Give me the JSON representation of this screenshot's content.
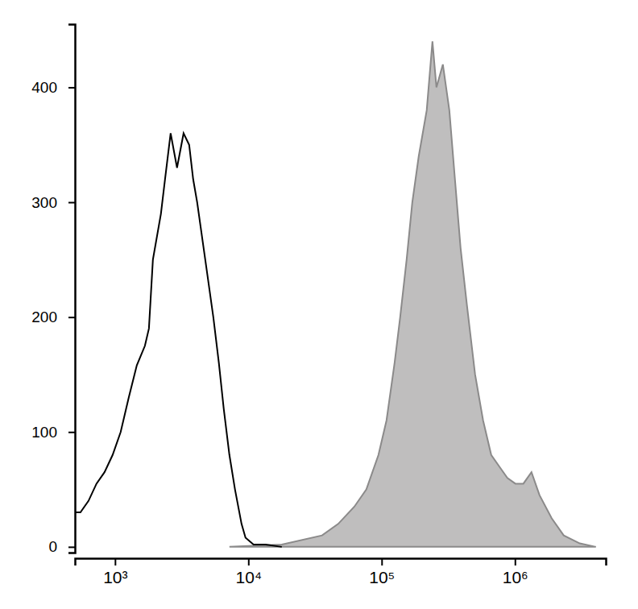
{
  "chart_data": {
    "type": "line",
    "log": "x",
    "xlim": [
      500,
      4800000
    ],
    "ylim": [
      -5,
      455
    ],
    "xticks": [
      {
        "value": 1000,
        "label": "10³"
      },
      {
        "value": 10000,
        "label": "10⁴"
      },
      {
        "value": 100000,
        "label": "10⁵"
      },
      {
        "value": 1000000,
        "label": "10⁶"
      }
    ],
    "yticks": [
      0,
      100,
      200,
      300,
      400
    ],
    "series": [
      {
        "type": "area",
        "color": "#bfbebe",
        "x": [
          7210,
          17820,
          35730,
          47200,
          62370,
          76740,
          94600,
          108700,
          125000,
          137700,
          153900,
          169800,
          189700,
          217800,
          240400,
          257600,
          287800,
          321900,
          354600,
          391000,
          436600,
          502300,
          576800,
          663700,
          762100,
          877000,
          1007000,
          1156000,
          1330000,
          1528000,
          1884000,
          2321000,
          3064000,
          4046000
        ],
        "values": [
          0,
          2,
          10,
          20,
          35,
          50,
          80,
          110,
          160,
          200,
          250,
          300,
          340,
          380,
          440,
          400,
          420,
          380,
          320,
          260,
          210,
          150,
          110,
          80,
          70,
          60,
          55,
          55,
          65,
          45,
          25,
          10,
          3,
          0
        ]
      },
      {
        "type": "line",
        "color": "#000000",
        "x": [
          500,
          550,
          632,
          726,
          834,
          959,
          1102,
          1267,
          1456,
          1675,
          1795,
          1923,
          2209,
          2371,
          2612,
          2917,
          3266,
          3597,
          3855,
          4130,
          4750,
          5460,
          6010,
          6540,
          7210,
          7940,
          8890,
          9520,
          10940,
          13490,
          17820
        ],
        "values": [
          30,
          30,
          40,
          55,
          65,
          80,
          100,
          130,
          158,
          175,
          190,
          250,
          290,
          320,
          360,
          330,
          360,
          350,
          320,
          300,
          250,
          200,
          160,
          120,
          80,
          50,
          20,
          8,
          2,
          2,
          0
        ]
      }
    ]
  }
}
